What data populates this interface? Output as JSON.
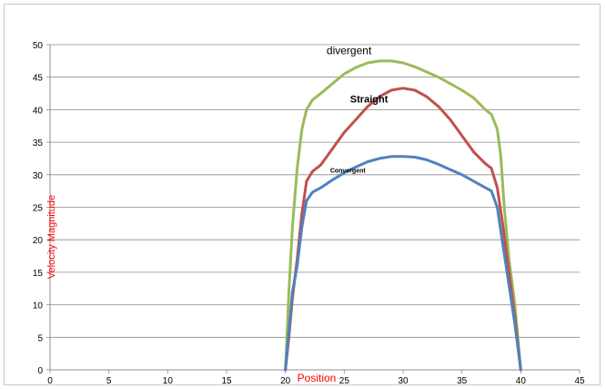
{
  "chart_data": {
    "type": "line",
    "title": "",
    "xlabel": "Position",
    "ylabel": "Velocity Magnitude",
    "xlim": [
      0,
      45
    ],
    "ylim": [
      0,
      50
    ],
    "x_ticks": [
      0,
      5,
      10,
      15,
      20,
      25,
      30,
      35,
      40,
      45
    ],
    "y_ticks": [
      0,
      5,
      10,
      15,
      20,
      25,
      30,
      35,
      40,
      45,
      50
    ],
    "grid": "horizontal",
    "legend": "none",
    "series": [
      {
        "name": "divergent",
        "color": "#9bbb59",
        "label_at": [
          23.5,
          48.5
        ],
        "points": [
          [
            20,
            0
          ],
          [
            20.3,
            12
          ],
          [
            20.6,
            22
          ],
          [
            21,
            31
          ],
          [
            21.4,
            37
          ],
          [
            21.8,
            40
          ],
          [
            22.3,
            41.5
          ],
          [
            23,
            42.5
          ],
          [
            24,
            44
          ],
          [
            25,
            45.5
          ],
          [
            26,
            46.5
          ],
          [
            27,
            47.2
          ],
          [
            28,
            47.5
          ],
          [
            29,
            47.5
          ],
          [
            30,
            47.2
          ],
          [
            31,
            46.6
          ],
          [
            32,
            45.8
          ],
          [
            33,
            45
          ],
          [
            34,
            44
          ],
          [
            35,
            43
          ],
          [
            36,
            41.8
          ],
          [
            37,
            40
          ],
          [
            37.5,
            39.3
          ],
          [
            38,
            37
          ],
          [
            38.3,
            33
          ],
          [
            38.6,
            25
          ],
          [
            39,
            17
          ],
          [
            39.5,
            10
          ],
          [
            40,
            0
          ]
        ]
      },
      {
        "name": "Straight",
        "color": "#c0504d",
        "label_at": [
          25.5,
          41.1
        ],
        "points": [
          [
            20,
            0
          ],
          [
            20.3,
            5
          ],
          [
            20.6,
            11
          ],
          [
            21,
            17
          ],
          [
            21.4,
            24
          ],
          [
            21.8,
            29
          ],
          [
            22.3,
            30.5
          ],
          [
            23,
            31.5
          ],
          [
            24,
            34
          ],
          [
            25,
            36.5
          ],
          [
            26,
            38.5
          ],
          [
            27,
            40.5
          ],
          [
            28,
            42
          ],
          [
            29,
            43
          ],
          [
            30,
            43.3
          ],
          [
            31,
            43
          ],
          [
            32,
            42
          ],
          [
            33,
            40.5
          ],
          [
            34,
            38.5
          ],
          [
            35,
            36
          ],
          [
            36,
            33.5
          ],
          [
            37,
            31.7
          ],
          [
            37.5,
            31
          ],
          [
            38,
            28
          ],
          [
            38.5,
            22
          ],
          [
            39,
            15
          ],
          [
            39.5,
            8
          ],
          [
            40,
            0
          ]
        ]
      },
      {
        "name": "Convergent",
        "color": "#4f81bd",
        "label_at": [
          23.8,
          30.3
        ],
        "points": [
          [
            20,
            0
          ],
          [
            20.3,
            6
          ],
          [
            20.6,
            12
          ],
          [
            21,
            16
          ],
          [
            21.4,
            22
          ],
          [
            21.8,
            26
          ],
          [
            22.3,
            27.3
          ],
          [
            23,
            28
          ],
          [
            24,
            29.2
          ],
          [
            25,
            30.3
          ],
          [
            26,
            31.2
          ],
          [
            27,
            32
          ],
          [
            28,
            32.5
          ],
          [
            29,
            32.8
          ],
          [
            30,
            32.8
          ],
          [
            31,
            32.7
          ],
          [
            32,
            32.3
          ],
          [
            33,
            31.6
          ],
          [
            34,
            30.8
          ],
          [
            35,
            30
          ],
          [
            36,
            29
          ],
          [
            37,
            28
          ],
          [
            37.5,
            27.5
          ],
          [
            38,
            25
          ],
          [
            38.5,
            19
          ],
          [
            39,
            13
          ],
          [
            39.5,
            7
          ],
          [
            40,
            0
          ]
        ]
      }
    ]
  }
}
